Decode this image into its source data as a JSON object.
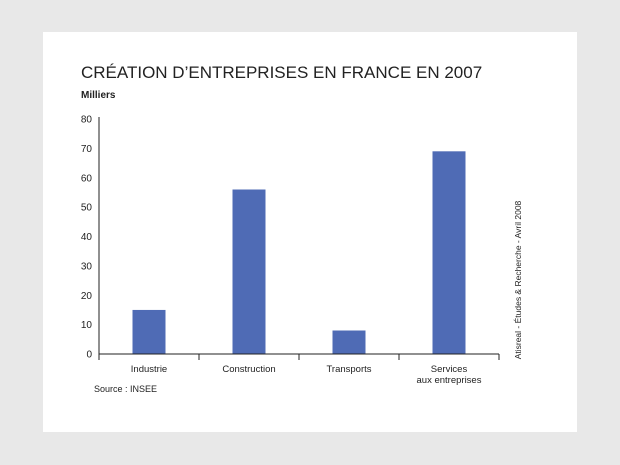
{
  "chart_data": {
    "type": "bar",
    "title": "CRÉATION D’ENTREPRISES EN FRANCE EN 2007",
    "ylabel": "Milliers",
    "xlabel": "",
    "categories": [
      [
        "Industrie"
      ],
      [
        "Construction"
      ],
      [
        "Transports"
      ],
      [
        "Services",
        "aux entreprises"
      ]
    ],
    "values": [
      15,
      56,
      8,
      69
    ],
    "ylim": [
      0,
      80
    ],
    "yticks": [
      0,
      10,
      20,
      30,
      40,
      50,
      60,
      70,
      80
    ],
    "grid": false,
    "bar_color": "#4f6bb5",
    "source": "Source : INSEE",
    "credit": "Atisreal - Études & Recherche - Avril 2008"
  }
}
